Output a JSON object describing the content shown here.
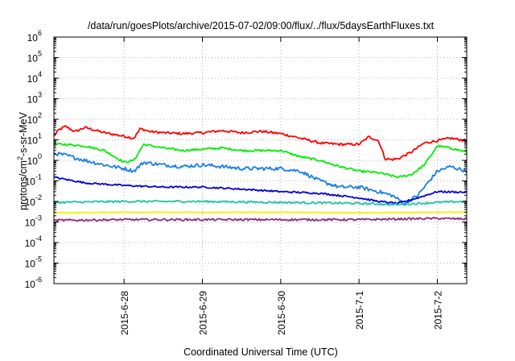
{
  "chart_data": {
    "type": "line",
    "title": "/data/run/goesPlots/archive/2015-07-02/09:00/flux/../flux/5daysEarthFluxes.txt",
    "xlabel": "Coordinated Universal Time (UTC)",
    "ylabel_main": "protons/cm",
    "ylabel_sup": "2",
    "ylabel_rest": "-s-sr-MeV",
    "y_scale": "log",
    "ylim_exp": [
      -6,
      6
    ],
    "y_ticks": [
      {
        "base": "10",
        "exp": "-6",
        "value": -6
      },
      {
        "base": "10",
        "exp": "-5",
        "value": -5
      },
      {
        "base": "10",
        "exp": "-4",
        "value": -4
      },
      {
        "base": "10",
        "exp": "-3",
        "value": -3
      },
      {
        "base": "10",
        "exp": "-2",
        "value": -2
      },
      {
        "base": "10",
        "exp": "-1",
        "value": -1
      },
      {
        "base": "10",
        "exp": "0",
        "value": 0
      },
      {
        "base": "10",
        "exp": "1",
        "value": 1
      },
      {
        "base": "10",
        "exp": "2",
        "value": 2
      },
      {
        "base": "10",
        "exp": "3",
        "value": 3
      },
      {
        "base": "10",
        "exp": "4",
        "value": 4
      },
      {
        "base": "10",
        "exp": "5",
        "value": 5
      },
      {
        "base": "10",
        "exp": "6",
        "value": 6
      }
    ],
    "xlim": [
      "2015-06-27 02:30",
      "2015-07-02 09:00"
    ],
    "x_ticks": [
      {
        "label": "2015-6-28",
        "date": "2015-06-28 00:00"
      },
      {
        "label": "2015-6-29",
        "date": "2015-06-29 00:00"
      },
      {
        "label": "2015-6-30",
        "date": "2015-06-30 00:00"
      },
      {
        "label": "2015-7-1",
        "date": "2015-07-01 00:00"
      },
      {
        "label": "2015-7-2",
        "date": "2015-07-02 00:00"
      }
    ],
    "grid": true,
    "legend": "none",
    "series": [
      {
        "color": "#ff0000",
        "noise": 0.06,
        "points": [
          [
            "2015-06-27 02:30",
            15
          ],
          [
            "2015-06-27 04:00",
            30
          ],
          [
            "2015-06-27 06:00",
            45
          ],
          [
            "2015-06-27 09:00",
            25
          ],
          [
            "2015-06-27 12:00",
            40
          ],
          [
            "2015-06-27 18:00",
            22
          ],
          [
            "2015-06-28 00:00",
            15
          ],
          [
            "2015-06-28 03:00",
            12
          ],
          [
            "2015-06-28 05:00",
            35
          ],
          [
            "2015-06-28 08:00",
            25
          ],
          [
            "2015-06-28 12:00",
            22
          ],
          [
            "2015-06-28 18:00",
            20
          ],
          [
            "2015-06-29 00:00",
            22
          ],
          [
            "2015-06-29 06:00",
            28
          ],
          [
            "2015-06-29 12:00",
            22
          ],
          [
            "2015-06-29 18:00",
            26
          ],
          [
            "2015-06-30 00:00",
            20
          ],
          [
            "2015-06-30 06:00",
            12
          ],
          [
            "2015-06-30 12:00",
            7
          ],
          [
            "2015-06-30 18:00",
            6
          ],
          [
            "2015-07-01 00:00",
            6
          ],
          [
            "2015-07-01 03:00",
            14
          ],
          [
            "2015-07-01 06:00",
            9
          ],
          [
            "2015-07-01 08:00",
            1.2
          ],
          [
            "2015-07-01 10:00",
            1.1
          ],
          [
            "2015-07-01 12:00",
            1.2
          ],
          [
            "2015-07-01 16:00",
            2.5
          ],
          [
            "2015-07-01 20:00",
            7
          ],
          [
            "2015-07-02 00:00",
            9
          ],
          [
            "2015-07-02 04:00",
            12
          ],
          [
            "2015-07-02 09:00",
            9
          ]
        ]
      },
      {
        "color": "#00ee00",
        "noise": 0.05,
        "points": [
          [
            "2015-06-27 02:30",
            6
          ],
          [
            "2015-06-27 06:00",
            6
          ],
          [
            "2015-06-27 12:00",
            5
          ],
          [
            "2015-06-27 18:00",
            3
          ],
          [
            "2015-06-28 00:00",
            0.8
          ],
          [
            "2015-06-28 03:00",
            1.0
          ],
          [
            "2015-06-28 06:00",
            6
          ],
          [
            "2015-06-28 12:00",
            4
          ],
          [
            "2015-06-28 18:00",
            3
          ],
          [
            "2015-06-29 00:00",
            3.5
          ],
          [
            "2015-06-29 06:00",
            4
          ],
          [
            "2015-06-29 12:00",
            3
          ],
          [
            "2015-06-29 18:00",
            3
          ],
          [
            "2015-06-30 00:00",
            3
          ],
          [
            "2015-06-30 06:00",
            1.5
          ],
          [
            "2015-06-30 12:00",
            1.0
          ],
          [
            "2015-06-30 18:00",
            0.5
          ],
          [
            "2015-07-01 00:00",
            0.3
          ],
          [
            "2015-07-01 06:00",
            0.25
          ],
          [
            "2015-07-01 12:00",
            0.15
          ],
          [
            "2015-07-01 16:00",
            0.2
          ],
          [
            "2015-07-01 20:00",
            0.6
          ],
          [
            "2015-07-02 00:00",
            5
          ],
          [
            "2015-07-02 04:00",
            4
          ],
          [
            "2015-07-02 09:00",
            2.5
          ]
        ]
      },
      {
        "color": "#1a7ee6",
        "noise": 0.09,
        "points": [
          [
            "2015-06-27 02:30",
            2.2
          ],
          [
            "2015-06-27 06:00",
            1.8
          ],
          [
            "2015-06-27 12:00",
            1.0
          ],
          [
            "2015-06-27 18:00",
            0.6
          ],
          [
            "2015-06-28 00:00",
            0.4
          ],
          [
            "2015-06-28 03:00",
            0.3
          ],
          [
            "2015-06-28 06:00",
            0.8
          ],
          [
            "2015-06-28 12:00",
            0.6
          ],
          [
            "2015-06-28 18:00",
            0.5
          ],
          [
            "2015-06-29 00:00",
            0.6
          ],
          [
            "2015-06-29 06:00",
            0.5
          ],
          [
            "2015-06-29 12:00",
            0.4
          ],
          [
            "2015-06-29 18:00",
            0.4
          ],
          [
            "2015-06-30 00:00",
            0.4
          ],
          [
            "2015-06-30 06:00",
            0.3
          ],
          [
            "2015-06-30 12:00",
            0.1
          ],
          [
            "2015-06-30 18:00",
            0.05
          ],
          [
            "2015-07-01 00:00",
            0.05
          ],
          [
            "2015-07-01 06:00",
            0.03
          ],
          [
            "2015-07-01 10:00",
            0.02
          ],
          [
            "2015-07-01 14:00",
            0.008
          ],
          [
            "2015-07-01 18:00",
            0.02
          ],
          [
            "2015-07-02 00:00",
            0.3
          ],
          [
            "2015-07-02 04:00",
            0.5
          ],
          [
            "2015-07-02 09:00",
            0.3
          ]
        ]
      },
      {
        "color": "#0000dd",
        "noise": 0.04,
        "points": [
          [
            "2015-06-27 02:30",
            0.15
          ],
          [
            "2015-06-27 06:00",
            0.12
          ],
          [
            "2015-06-27 12:00",
            0.08
          ],
          [
            "2015-06-28 00:00",
            0.06
          ],
          [
            "2015-06-28 12:00",
            0.05
          ],
          [
            "2015-06-29 00:00",
            0.05
          ],
          [
            "2015-06-29 12:00",
            0.04
          ],
          [
            "2015-06-30 00:00",
            0.03
          ],
          [
            "2015-06-30 12:00",
            0.025
          ],
          [
            "2015-07-01 00:00",
            0.015
          ],
          [
            "2015-07-01 06:00",
            0.01
          ],
          [
            "2015-07-01 12:00",
            0.008
          ],
          [
            "2015-07-01 18:00",
            0.015
          ],
          [
            "2015-07-02 00:00",
            0.03
          ],
          [
            "2015-07-02 09:00",
            0.028
          ]
        ]
      },
      {
        "color": "#22c4a4",
        "noise": 0.05,
        "points": [
          [
            "2015-06-27 02:30",
            0.009
          ],
          [
            "2015-06-28 00:00",
            0.01
          ],
          [
            "2015-06-29 00:00",
            0.01
          ],
          [
            "2015-06-30 00:00",
            0.009
          ],
          [
            "2015-07-01 00:00",
            0.008
          ],
          [
            "2015-07-01 12:00",
            0.007
          ],
          [
            "2015-07-02 00:00",
            0.009
          ],
          [
            "2015-07-02 09:00",
            0.01
          ]
        ]
      },
      {
        "color": "#f2f200",
        "noise": 0.02,
        "points": [
          [
            "2015-06-27 02:30",
            0.0028
          ],
          [
            "2015-06-28 00:00",
            0.003
          ],
          [
            "2015-06-29 00:00",
            0.0029
          ],
          [
            "2015-06-30 00:00",
            0.003
          ],
          [
            "2015-07-01 00:00",
            0.0028
          ],
          [
            "2015-07-02 00:00",
            0.003
          ],
          [
            "2015-07-02 09:00",
            0.003
          ]
        ]
      },
      {
        "color": "#8b2d77",
        "noise": 0.05,
        "points": [
          [
            "2015-06-27 02:30",
            0.0012
          ],
          [
            "2015-06-28 00:00",
            0.0013
          ],
          [
            "2015-06-29 00:00",
            0.0013
          ],
          [
            "2015-06-30 00:00",
            0.0013
          ],
          [
            "2015-07-01 00:00",
            0.0013
          ],
          [
            "2015-07-02 00:00",
            0.0015
          ],
          [
            "2015-07-02 09:00",
            0.0014
          ]
        ]
      }
    ]
  }
}
